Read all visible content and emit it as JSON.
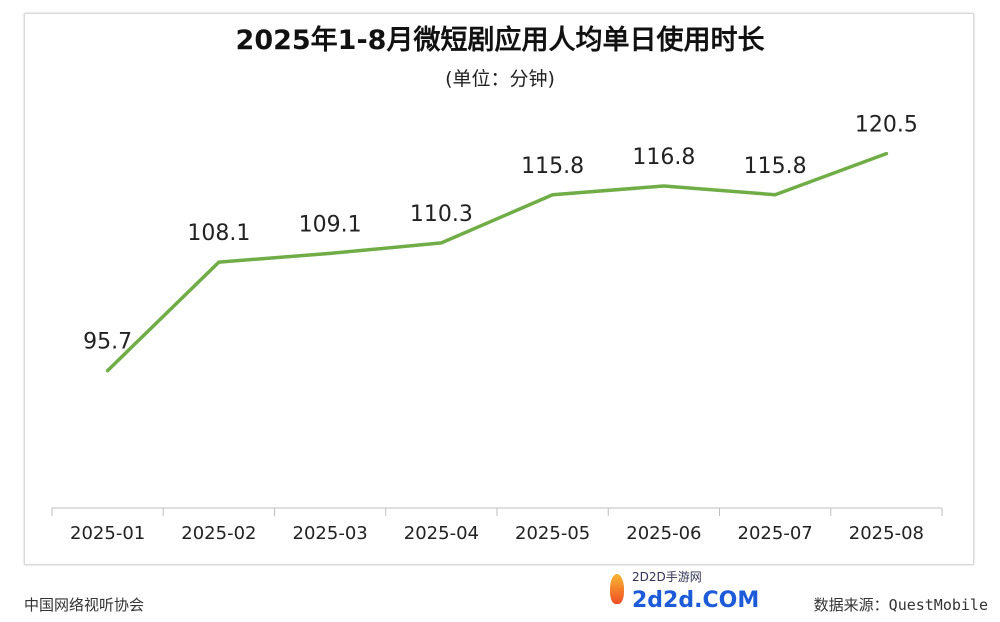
{
  "chart_data": {
    "type": "line",
    "title": "2025年1-8月微短剧应用人均单日使用时长",
    "subtitle": "(单位：分钟)",
    "categories": [
      "2025-01",
      "2025-02",
      "2025-03",
      "2025-04",
      "2025-05",
      "2025-06",
      "2025-07",
      "2025-08"
    ],
    "series": [
      {
        "name": "人均单日使用时长",
        "values": [
          95.7,
          108.1,
          109.1,
          110.3,
          115.8,
          116.8,
          115.8,
          120.5
        ],
        "labels": [
          "95.7",
          "108.1",
          "109.1",
          "110.3",
          "115.8",
          "116.8",
          "115.8",
          "120.5"
        ],
        "color": "#70ad47"
      }
    ],
    "xlabel": "",
    "ylabel": "",
    "ylim": [
      80,
      125
    ],
    "grid": false,
    "legend": "none"
  },
  "footer": {
    "left": "中国网络视听协会",
    "right": "数据来源：QuestMobile"
  },
  "watermark": {
    "line1": "2D2D手游网",
    "line2": "2d2d.COM"
  }
}
